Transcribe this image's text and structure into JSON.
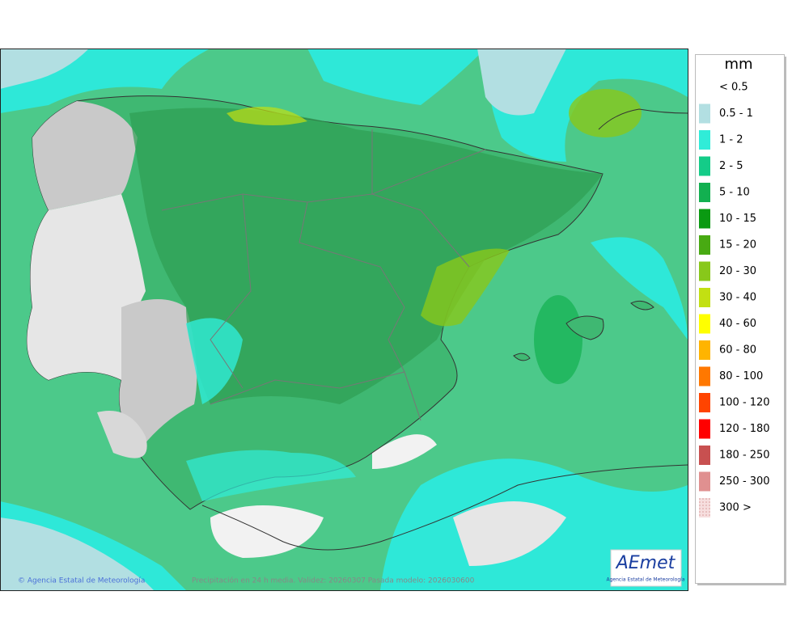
{
  "map": {
    "credit": "© Agencia Estatal de Meteorología",
    "caption": "Precipitación en 24 h media. Validez: 20260307 Pasada modelo: 2026030600",
    "logo": {
      "name": "AEmet",
      "subtitle": "Agencia Estatal de Meteorología"
    }
  },
  "legend": {
    "title": "mm",
    "items": [
      {
        "label": "< 0.5",
        "color": null
      },
      {
        "label": "0.5 - 1",
        "color": "#b2dfe2"
      },
      {
        "label": "1 - 2",
        "color": "#30ecd8"
      },
      {
        "label": "2 - 5",
        "color": "#14cc88"
      },
      {
        "label": "5 - 10",
        "color": "#12b050"
      },
      {
        "label": "10 - 15",
        "color": "#0a9a12"
      },
      {
        "label": "15 - 20",
        "color": "#48aa12"
      },
      {
        "label": "20 - 30",
        "color": "#88c81a"
      },
      {
        "label": "30 - 40",
        "color": "#c2e012"
      },
      {
        "label": "40 - 60",
        "color": "#ffff00"
      },
      {
        "label": "60 - 80",
        "color": "#ffb400"
      },
      {
        "label": "80 - 100",
        "color": "#ff7800"
      },
      {
        "label": "100 - 120",
        "color": "#ff4400"
      },
      {
        "label": "120 - 180",
        "color": "#ff0000"
      },
      {
        "label": "180 - 250",
        "color": "#c85050"
      },
      {
        "label": "250 - 300",
        "color": "#e09090"
      },
      {
        "label": "300 >",
        "color": "#f2cccc"
      }
    ]
  }
}
